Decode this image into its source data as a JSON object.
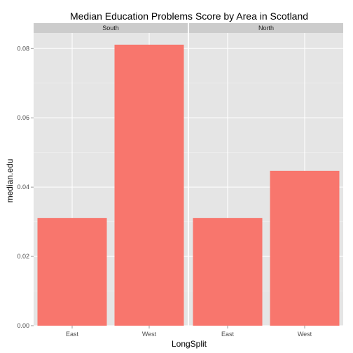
{
  "chart_data": {
    "type": "bar",
    "title": "Median Education Problems Score by Area in Scotland",
    "xlabel": "LongSplit",
    "ylabel": "median.edu",
    "ylim": [
      0,
      0.0845
    ],
    "y_ticks": [
      0.0,
      0.02,
      0.04,
      0.06,
      0.08
    ],
    "y_tick_labels": [
      "0.00",
      "0.02",
      "0.04",
      "0.06",
      "0.08"
    ],
    "categories": [
      "East",
      "West"
    ],
    "facets": [
      {
        "name": "South",
        "values": [
          0.0311,
          0.0811
        ]
      },
      {
        "name": "North",
        "values": [
          0.0311,
          0.0447
        ]
      }
    ],
    "bar_color": "#F8766D",
    "panel_background": "#E5E5E5",
    "strip_background": "#CCCCCC",
    "grid": true,
    "legend": "none"
  }
}
